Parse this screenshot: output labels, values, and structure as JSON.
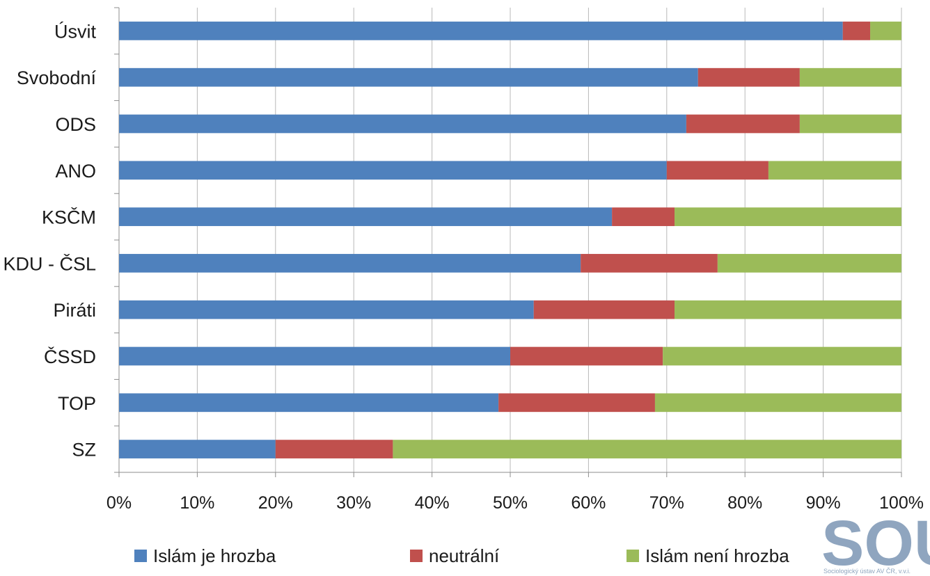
{
  "chart_data": {
    "type": "bar",
    "orientation": "horizontal",
    "stacked": true,
    "categories": [
      "Úsvit",
      "Svobodní",
      "ODS",
      "ANO",
      "KSČM",
      "KDU - ČSL",
      "Piráti",
      "ČSSD",
      "TOP",
      "SZ"
    ],
    "series": [
      {
        "name": "Islám je hrozba",
        "color": "#4f81bd",
        "values": [
          92.5,
          74,
          72.5,
          70,
          63,
          59,
          53,
          50,
          48.5,
          20
        ]
      },
      {
        "name": "neutrální",
        "color": "#c0504d",
        "values": [
          3.5,
          13,
          14.5,
          13,
          8,
          17.5,
          18,
          19.5,
          20,
          15
        ]
      },
      {
        "name": "Islám není hrozba",
        "color": "#9bbb59",
        "values": [
          4,
          13,
          13,
          17,
          29,
          23.5,
          29,
          30.5,
          31.5,
          65
        ]
      }
    ],
    "x_ticks": [
      "0%",
      "10%",
      "20%",
      "30%",
      "40%",
      "50%",
      "60%",
      "70%",
      "80%",
      "90%",
      "100%"
    ],
    "xlim": [
      0,
      100
    ],
    "grid": true,
    "legend_position": "bottom"
  },
  "logo": {
    "text": "SOÚ",
    "subtitle": "Sociologický ústav AV ČR, v.v.i."
  }
}
